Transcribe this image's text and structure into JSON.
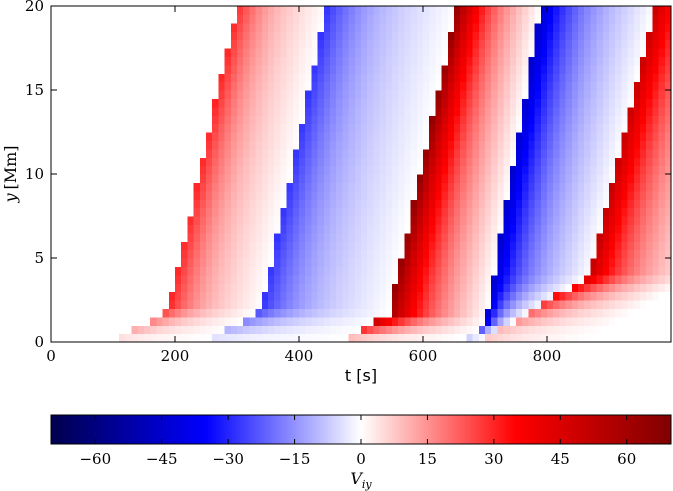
{
  "chart_data": [
    {
      "type": "heatmap",
      "xlabel": "t [s]",
      "ylabel_var": "y",
      "ylabel_unit": "[Mm]",
      "xlim": [
        0,
        1000
      ],
      "ylim": [
        0,
        20
      ],
      "x_ticks": [
        {
          "value": 0,
          "label": "0"
        },
        {
          "value": 200,
          "label": "200"
        },
        {
          "value": 400,
          "label": "400"
        },
        {
          "value": 600,
          "label": "600"
        },
        {
          "value": 800,
          "label": "800"
        }
      ],
      "y_ticks": [
        {
          "value": 0,
          "label": "0"
        },
        {
          "value": 5,
          "label": "5"
        },
        {
          "value": 10,
          "label": "10"
        },
        {
          "value": 15,
          "label": "15"
        },
        {
          "value": 20,
          "label": "20"
        }
      ],
      "colormap": "seismic",
      "vmin": -70,
      "vmax": 70,
      "wave_fronts": [
        {
          "t_base": 190,
          "t_top": 300,
          "y_kink": 2.0,
          "amplitude": 30
        },
        {
          "t_base": 340,
          "t_top": 445,
          "y_kink": 2.0,
          "amplitude": -28
        },
        {
          "t_base": 545,
          "t_top": 655,
          "y_kink": 1.7,
          "amplitude": 65
        },
        {
          "t_base": 700,
          "t_top": 790,
          "y_kink": 1.0,
          "amplitude": -45
        },
        {
          "t_base": 870,
          "t_top": 975,
          "y_kink": 4.0,
          "amplitude": 50
        }
      ]
    },
    {
      "type": "colorbar",
      "label_var": "V",
      "label_sub": "iy",
      "range": [
        -70,
        70
      ],
      "ticks": [
        "−60",
        "−45",
        "−30",
        "−15",
        "0",
        "15",
        "30",
        "45",
        "60"
      ],
      "tick_values": [
        -60,
        -45,
        -30,
        -15,
        0,
        15,
        30,
        45,
        60
      ],
      "colors": {
        "dark_blue": "#00004c",
        "blue": "#0000ff",
        "white": "#ffffff",
        "red": "#ff0000",
        "dark_red": "#800000"
      }
    }
  ]
}
